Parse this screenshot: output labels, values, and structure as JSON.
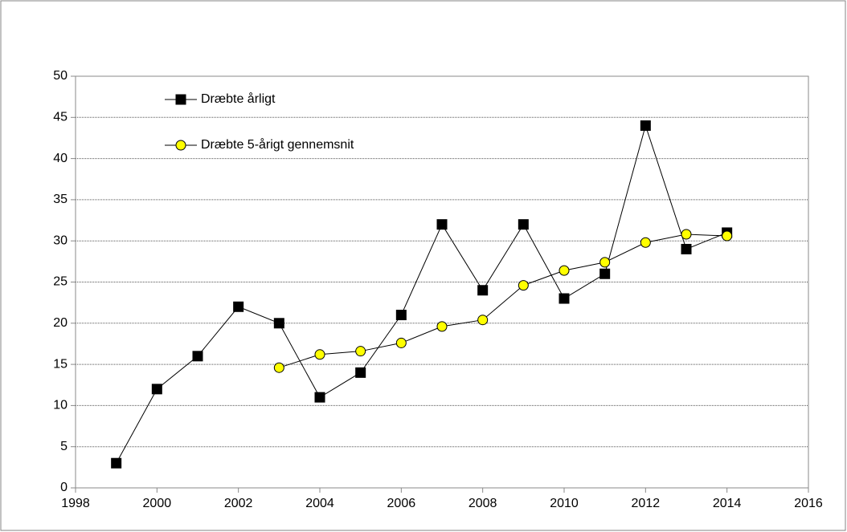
{
  "chart_data": {
    "type": "line",
    "x": [
      1999,
      2000,
      2001,
      2002,
      2003,
      2004,
      2005,
      2006,
      2007,
      2008,
      2009,
      2010,
      2011,
      2012,
      2013,
      2014
    ],
    "series": [
      {
        "name": "Dræbte årligt",
        "color": "#000000",
        "marker": "square",
        "values": [
          3,
          12,
          16,
          22,
          20,
          11,
          14,
          21,
          32,
          24,
          32,
          23,
          26,
          44,
          29,
          31
        ]
      },
      {
        "name": "Dræbte 5-årigt gennemsnit",
        "color": "#ffff00",
        "marker": "circle",
        "values": [
          null,
          null,
          null,
          null,
          14.6,
          16.2,
          16.6,
          17.6,
          19.6,
          20.4,
          24.6,
          26.4,
          27.4,
          29.8,
          30.8,
          30.6
        ]
      }
    ],
    "xlim": [
      1998,
      2016
    ],
    "xticks": [
      1998,
      2000,
      2002,
      2004,
      2006,
      2008,
      2010,
      2012,
      2014,
      2016
    ],
    "ylim": [
      0,
      50
    ],
    "yticks": [
      0,
      5,
      10,
      15,
      20,
      25,
      30,
      35,
      40,
      45,
      50
    ],
    "grid": true,
    "legend": "upper left"
  }
}
